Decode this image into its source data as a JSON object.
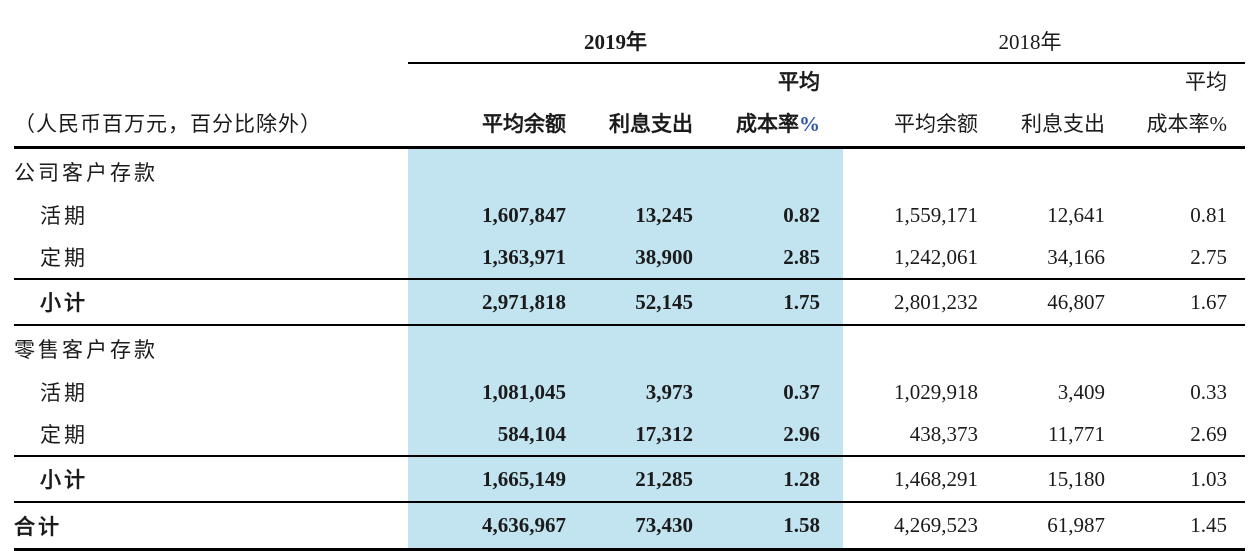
{
  "colors": {
    "highlight_band": "#c2e4f1",
    "percent_sign_2019": "#2e59a8",
    "text": "#1b1b1b",
    "rule": "#000000"
  },
  "header": {
    "meta_note": "（人民币百万元，百分比除外）",
    "years": {
      "y2019": "2019年",
      "y2018": "2018年"
    },
    "cols": {
      "avg_balance": "平均余额",
      "interest_expense": "利息支出",
      "avg_line": "平均",
      "cost_rate": "成本率",
      "percent": "%"
    }
  },
  "rows": [
    {
      "type": "section",
      "label": "公司客户存款",
      "v2019": [
        "",
        "",
        ""
      ],
      "v2018": [
        "",
        "",
        ""
      ]
    },
    {
      "type": "data",
      "label": "活期",
      "v2019": [
        "1,607,847",
        "13,245",
        "0.82"
      ],
      "v2018": [
        "1,559,171",
        "12,641",
        "0.81"
      ]
    },
    {
      "type": "data",
      "label": "定期",
      "v2019": [
        "1,363,971",
        "38,900",
        "2.85"
      ],
      "v2018": [
        "1,242,061",
        "34,166",
        "2.75"
      ]
    },
    {
      "type": "subtotal",
      "label": "小计",
      "v2019": [
        "2,971,818",
        "52,145",
        "1.75"
      ],
      "v2018": [
        "2,801,232",
        "46,807",
        "1.67"
      ]
    },
    {
      "type": "section",
      "label": "零售客户存款",
      "v2019": [
        "",
        "",
        ""
      ],
      "v2018": [
        "",
        "",
        ""
      ]
    },
    {
      "type": "data",
      "label": "活期",
      "v2019": [
        "1,081,045",
        "3,973",
        "0.37"
      ],
      "v2018": [
        "1,029,918",
        "3,409",
        "0.33"
      ]
    },
    {
      "type": "data",
      "label": "定期",
      "v2019": [
        "584,104",
        "17,312",
        "2.96"
      ],
      "v2018": [
        "438,373",
        "11,771",
        "2.69"
      ]
    },
    {
      "type": "subtotal",
      "label": "小计",
      "v2019": [
        "1,665,149",
        "21,285",
        "1.28"
      ],
      "v2018": [
        "1,468,291",
        "15,180",
        "1.03"
      ]
    },
    {
      "type": "total",
      "label": "合计",
      "v2019": [
        "4,636,967",
        "73,430",
        "1.58"
      ],
      "v2018": [
        "4,269,523",
        "61,987",
        "1.45"
      ]
    }
  ]
}
